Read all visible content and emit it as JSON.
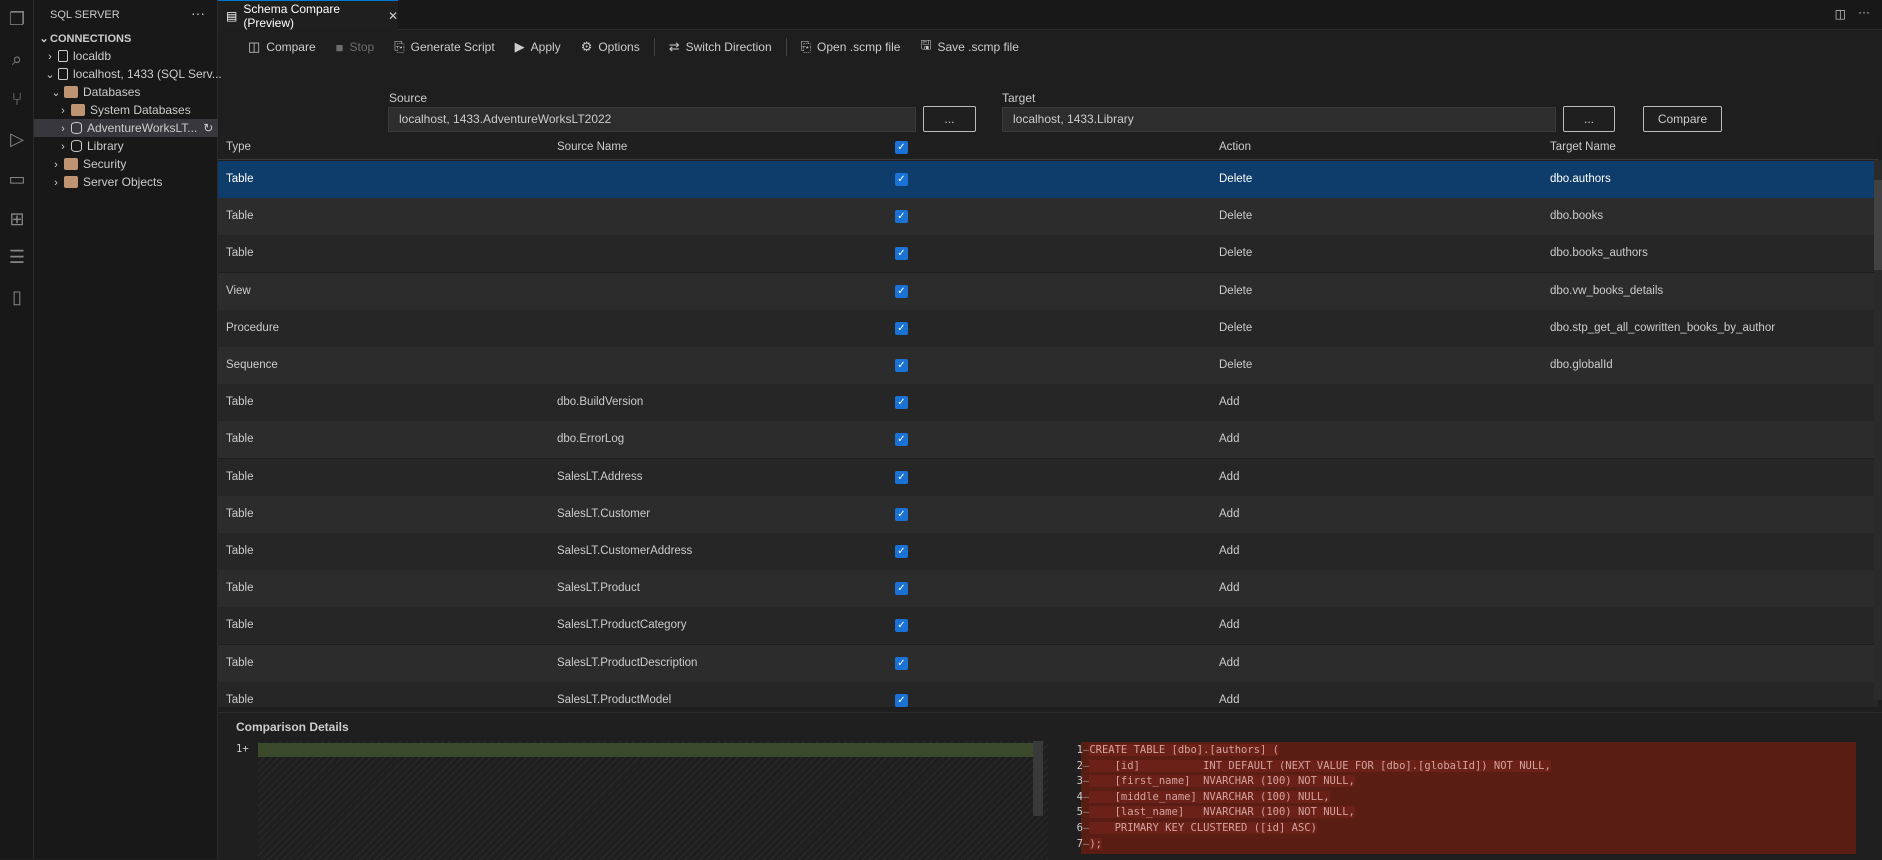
{
  "activity_bar": {
    "icons": [
      "explorer-icon",
      "search-icon",
      "source-control-icon",
      "run-debug-icon",
      "remote-explorer-icon",
      "extensions-icon",
      "sql-server-icon",
      "notebook-icon"
    ]
  },
  "sidebar": {
    "title": "SQL SERVER",
    "section": "CONNECTIONS",
    "items": [
      {
        "label": "localdb"
      },
      {
        "label": "localhost, 1433 (SQL Serv..."
      },
      {
        "label": "Databases"
      },
      {
        "label": "System Databases"
      },
      {
        "label": "AdventureWorksLT..."
      },
      {
        "label": "Library"
      },
      {
        "label": "Security"
      },
      {
        "label": "Server Objects"
      }
    ]
  },
  "tab": {
    "title": "Schema Compare (Preview)"
  },
  "toolbar": {
    "compare": "Compare",
    "stop": "Stop",
    "generate_script": "Generate Script",
    "apply": "Apply",
    "options": "Options",
    "switch_direction": "Switch Direction",
    "open_scmp": "Open .scmp file",
    "save_scmp": "Save .scmp file"
  },
  "source": {
    "label": "Source",
    "value": "localhost, 1433.AdventureWorksLT2022",
    "browse": "..."
  },
  "target": {
    "label": "Target",
    "value": "localhost, 1433.Library",
    "browse": "...",
    "compare": "Compare"
  },
  "grid": {
    "headers": {
      "type": "Type",
      "source_name": "Source Name",
      "action": "Action",
      "target_name": "Target Name"
    },
    "rows": [
      {
        "type": "Table",
        "source": "",
        "action": "Delete",
        "target": "dbo.authors"
      },
      {
        "type": "Table",
        "source": "",
        "action": "Delete",
        "target": "dbo.books"
      },
      {
        "type": "Table",
        "source": "",
        "action": "Delete",
        "target": "dbo.books_authors"
      },
      {
        "type": "View",
        "source": "",
        "action": "Delete",
        "target": "dbo.vw_books_details"
      },
      {
        "type": "Procedure",
        "source": "",
        "action": "Delete",
        "target": "dbo.stp_get_all_cowritten_books_by_author"
      },
      {
        "type": "Sequence",
        "source": "",
        "action": "Delete",
        "target": "dbo.globalId"
      },
      {
        "type": "Table",
        "source": "dbo.BuildVersion",
        "action": "Add",
        "target": ""
      },
      {
        "type": "Table",
        "source": "dbo.ErrorLog",
        "action": "Add",
        "target": ""
      },
      {
        "type": "Table",
        "source": "SalesLT.Address",
        "action": "Add",
        "target": ""
      },
      {
        "type": "Table",
        "source": "SalesLT.Customer",
        "action": "Add",
        "target": ""
      },
      {
        "type": "Table",
        "source": "SalesLT.CustomerAddress",
        "action": "Add",
        "target": ""
      },
      {
        "type": "Table",
        "source": "SalesLT.Product",
        "action": "Add",
        "target": ""
      },
      {
        "type": "Table",
        "source": "SalesLT.ProductCategory",
        "action": "Add",
        "target": ""
      },
      {
        "type": "Table",
        "source": "SalesLT.ProductDescription",
        "action": "Add",
        "target": ""
      },
      {
        "type": "Table",
        "source": "SalesLT.ProductModel",
        "action": "Add",
        "target": ""
      }
    ]
  },
  "details": {
    "title": "Comparison Details",
    "left_lines": [
      "1"
    ],
    "right_lines": [
      "CREATE TABLE [dbo].[authors] (",
      "    [id]          INT DEFAULT (NEXT VALUE FOR [dbo].[globalId]) NOT NULL,",
      "    [first_name]  NVARCHAR (100) NOT NULL,",
      "    [middle_name] NVARCHAR (100) NULL,",
      "    [last_name]   NVARCHAR (100) NOT NULL,",
      "    PRIMARY KEY CLUSTERED ([id] ASC)",
      ");"
    ]
  },
  "colors": {
    "accent": "#0078d4",
    "selected_row": "#0e3d6b",
    "checkbox": "#1a73d4",
    "deleted_bg": "#5a1d14",
    "added_bg": "#3b4a2a"
  }
}
